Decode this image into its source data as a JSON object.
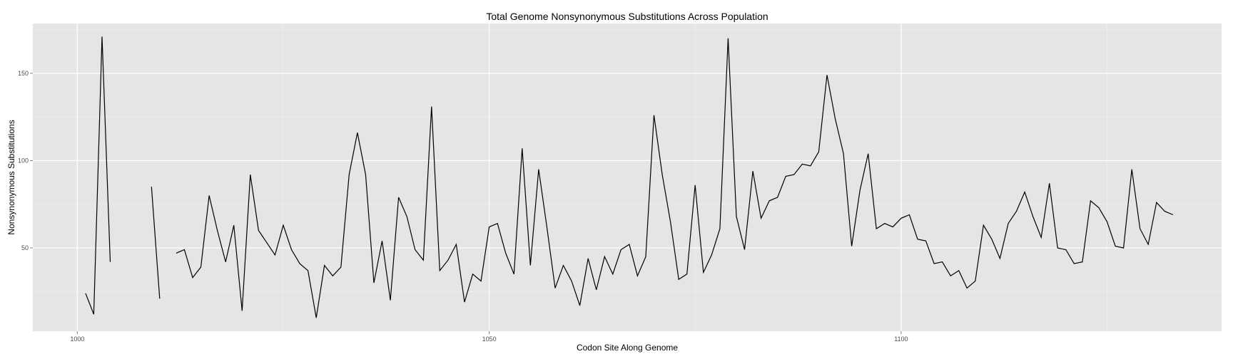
{
  "chart_data": {
    "type": "line",
    "title": "Total Genome Nonsynonymous Substitutions Across Population",
    "xlabel": "Codon Site Along Genome",
    "ylabel": "Nonsynonymous Substitutions",
    "xlim": [
      994.6,
      1138.9
    ],
    "ylim": [
      2.3,
      178.5
    ],
    "x_ticks": [
      1000,
      1050,
      1100
    ],
    "y_ticks": [
      50,
      100,
      150
    ],
    "grid": true,
    "legend": "none",
    "colors": {
      "panel": "#e5e5e5",
      "grid": "#ffffff",
      "line": "#000000"
    },
    "series": [
      {
        "segments": [
          {
            "x": [
              1001,
              1002,
              1003,
              1004
            ],
            "y": [
              24,
              12,
              171,
              42
            ]
          },
          {
            "x": [
              1009,
              1010
            ],
            "y": [
              85,
              21
            ]
          },
          {
            "x": [
              1012,
              1013,
              1014,
              1015,
              1016,
              1017,
              1018,
              1019,
              1020,
              1021,
              1022,
              1023,
              1024,
              1025,
              1026,
              1027,
              1028,
              1029,
              1030,
              1031,
              1032,
              1033,
              1034,
              1035,
              1036,
              1037,
              1038,
              1039,
              1040,
              1041,
              1042,
              1043,
              1044,
              1045,
              1046,
              1047,
              1048,
              1049,
              1050,
              1051,
              1052,
              1053,
              1054,
              1055,
              1056,
              1057,
              1058,
              1059,
              1060,
              1061,
              1062,
              1063,
              1064,
              1065,
              1066,
              1067,
              1068,
              1069,
              1070,
              1071,
              1072,
              1073,
              1074,
              1075,
              1076,
              1077,
              1078,
              1079,
              1080,
              1081,
              1082,
              1083,
              1084,
              1085,
              1086,
              1087,
              1088,
              1089,
              1090,
              1091,
              1092,
              1093,
              1094,
              1095,
              1096,
              1097,
              1098,
              1099,
              1100,
              1101,
              1102,
              1103,
              1104,
              1105,
              1106,
              1107,
              1108,
              1109,
              1110,
              1111,
              1112,
              1113,
              1114,
              1115,
              1116,
              1117,
              1118,
              1119,
              1120,
              1121,
              1122,
              1123,
              1124,
              1125,
              1126,
              1127,
              1128,
              1129,
              1130,
              1131,
              1132,
              1133
            ],
            "y": [
              47,
              49,
              33,
              39,
              80,
              60,
              42,
              63,
              14,
              92,
              60,
              53,
              46,
              63,
              49,
              41,
              37,
              10,
              40,
              34,
              39,
              92,
              116,
              92,
              30,
              54,
              20,
              79,
              68,
              49,
              43,
              131,
              37,
              43,
              52,
              19,
              35,
              31,
              62,
              64,
              47,
              35,
              107,
              40,
              95,
              62,
              27,
              40,
              31,
              17,
              44,
              26,
              45,
              35,
              49,
              52,
              34,
              45,
              126,
              92,
              65,
              32,
              35,
              86,
              36,
              46,
              61,
              170,
              68,
              49,
              94,
              67,
              77,
              79,
              91,
              92,
              98,
              97,
              105,
              149,
              124,
              104,
              51,
              83,
              104,
              61,
              64,
              62,
              67,
              69,
              55,
              54,
              41,
              42,
              34,
              37,
              27,
              31,
              63,
              55,
              44,
              64,
              71,
              82,
              68,
              56,
              87,
              50,
              49,
              41,
              42,
              77,
              73,
              65,
              51,
              50,
              95,
              61,
              52,
              76,
              71,
              69
            ]
          }
        ]
      }
    ]
  }
}
